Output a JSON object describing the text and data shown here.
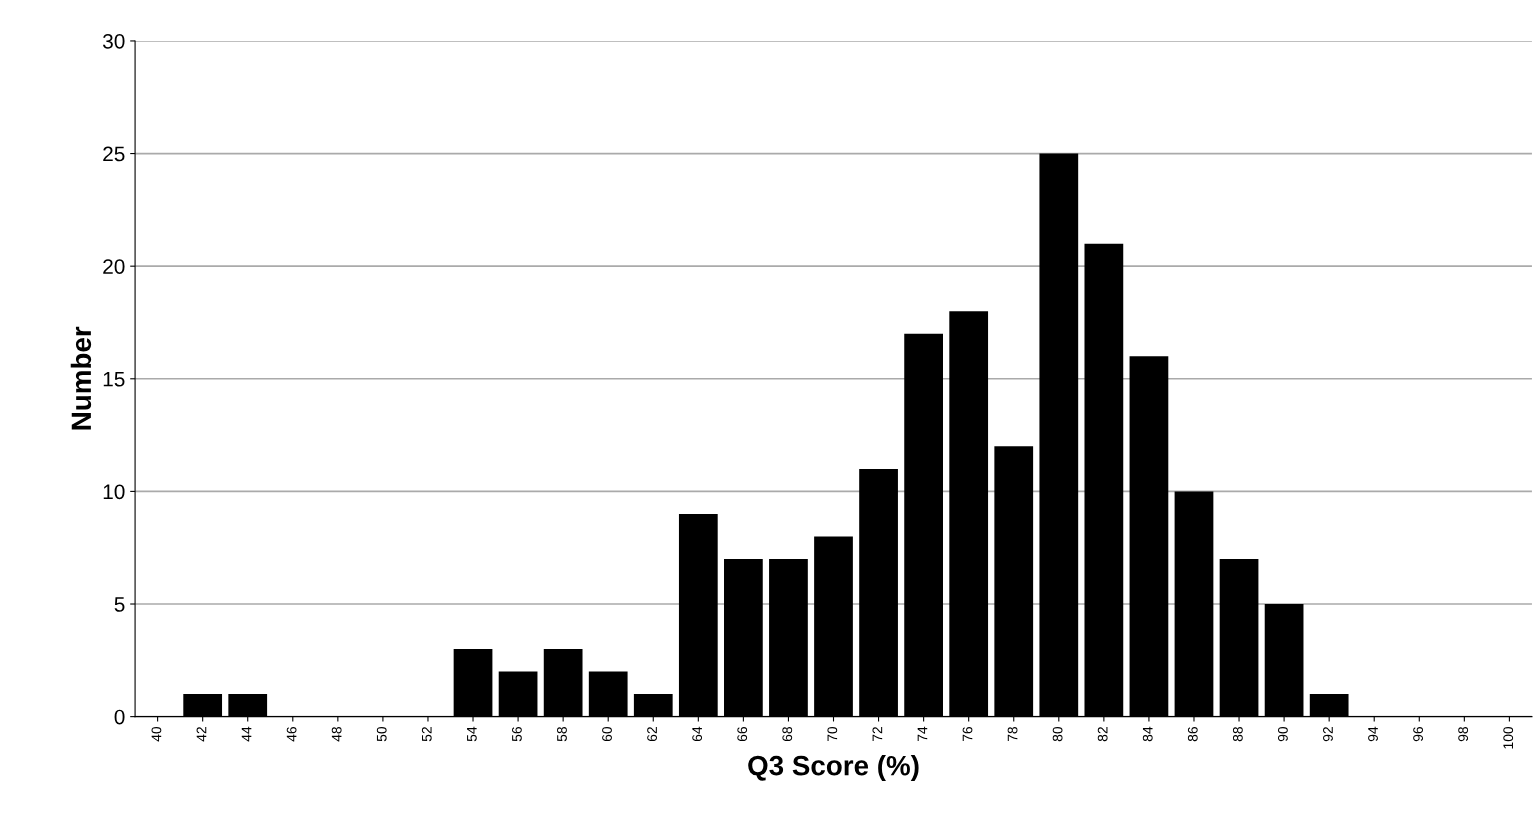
{
  "chart_data": {
    "type": "bar",
    "xlabel": "Q3 Score (%)",
    "ylabel": "Number",
    "categories": [
      "40",
      "42",
      "44",
      "46",
      "48",
      "50",
      "52",
      "54",
      "56",
      "58",
      "60",
      "62",
      "64",
      "66",
      "68",
      "70",
      "72",
      "74",
      "76",
      "78",
      "80",
      "82",
      "84",
      "86",
      "88",
      "90",
      "92",
      "94",
      "96",
      "98",
      "100"
    ],
    "values": [
      0,
      1,
      1,
      0,
      0,
      0,
      0,
      3,
      2,
      3,
      2,
      1,
      9,
      7,
      7,
      8,
      11,
      17,
      18,
      12,
      25,
      21,
      16,
      10,
      7,
      5,
      1,
      0,
      0,
      0,
      0
    ],
    "color": "#000000",
    "ylim": [
      0,
      30
    ],
    "yticks": [
      0,
      5,
      10,
      15,
      20,
      25,
      30
    ],
    "grid": "y",
    "legend": false
  }
}
